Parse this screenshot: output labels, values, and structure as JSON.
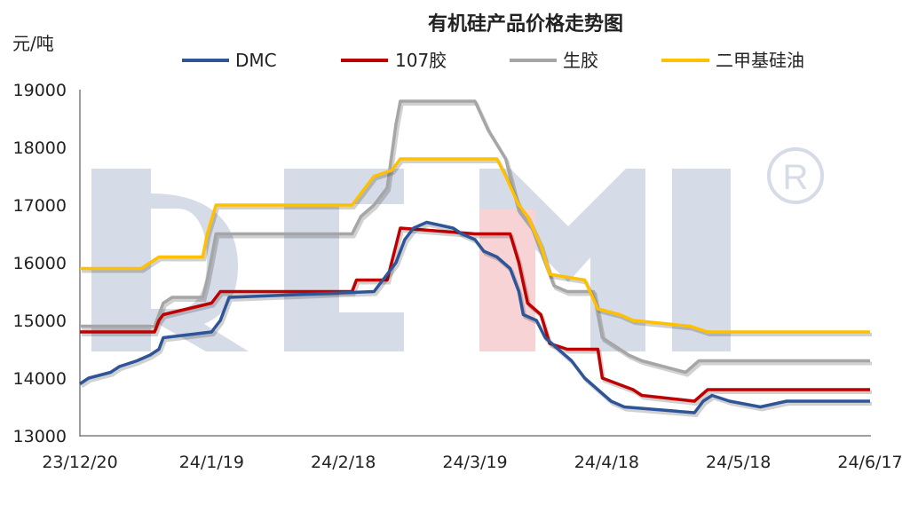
{
  "chart_data": {
    "type": "line",
    "title": "有机硅产品价格走势图",
    "ylabel": "元/吨",
    "ylim": [
      13000,
      19000
    ],
    "yticks": [
      "13000",
      "14000",
      "15000",
      "16000",
      "17000",
      "18000",
      "19000"
    ],
    "xlim": [
      "2023-12-20",
      "2024-06-17"
    ],
    "xticks": [
      {
        "date": "2023-12-20",
        "label": "23/12/20"
      },
      {
        "date": "2024-01-19",
        "label": "24/1/19"
      },
      {
        "date": "2024-02-18",
        "label": "24/2/18"
      },
      {
        "date": "2024-03-19",
        "label": "24/3/19"
      },
      {
        "date": "2024-04-18",
        "label": "24/4/18"
      },
      {
        "date": "2024-05-18",
        "label": "24/5/18"
      },
      {
        "date": "2024-06-17",
        "label": "24/6/17"
      }
    ],
    "legend_position": "top",
    "grid": false,
    "series": [
      {
        "name": "DMC",
        "color": "#2E5597",
        "points": [
          [
            "2023-12-20",
            13900
          ],
          [
            "2023-12-22",
            14000
          ],
          [
            "2023-12-27",
            14100
          ],
          [
            "2023-12-29",
            14200
          ],
          [
            "2024-01-02",
            14300
          ],
          [
            "2024-01-05",
            14400
          ],
          [
            "2024-01-07",
            14500
          ],
          [
            "2024-01-08",
            14700
          ],
          [
            "2024-01-19",
            14800
          ],
          [
            "2024-01-21",
            15000
          ],
          [
            "2024-01-23",
            15400
          ],
          [
            "2024-02-25",
            15500
          ],
          [
            "2024-03-01",
            16000
          ],
          [
            "2024-03-03",
            16400
          ],
          [
            "2024-03-05",
            16600
          ],
          [
            "2024-03-08",
            16700
          ],
          [
            "2024-03-14",
            16600
          ],
          [
            "2024-03-16",
            16500
          ],
          [
            "2024-03-19",
            16400
          ],
          [
            "2024-03-21",
            16200
          ],
          [
            "2024-03-24",
            16100
          ],
          [
            "2024-03-27",
            15900
          ],
          [
            "2024-03-29",
            15500
          ],
          [
            "2024-03-30",
            15100
          ],
          [
            "2024-04-02",
            15000
          ],
          [
            "2024-04-04",
            14700
          ],
          [
            "2024-04-07",
            14500
          ],
          [
            "2024-04-10",
            14300
          ],
          [
            "2024-04-13",
            14000
          ],
          [
            "2024-04-16",
            13800
          ],
          [
            "2024-04-19",
            13600
          ],
          [
            "2024-04-22",
            13500
          ],
          [
            "2024-05-08",
            13400
          ],
          [
            "2024-05-10",
            13600
          ],
          [
            "2024-05-12",
            13700
          ],
          [
            "2024-05-16",
            13600
          ],
          [
            "2024-05-23",
            13500
          ],
          [
            "2024-05-29",
            13600
          ],
          [
            "2024-06-17",
            13600
          ]
        ]
      },
      {
        "name": "107胶",
        "color": "#C00000",
        "points": [
          [
            "2023-12-20",
            14800
          ],
          [
            "2024-01-06",
            14800
          ],
          [
            "2024-01-07",
            15000
          ],
          [
            "2024-01-08",
            15100
          ],
          [
            "2024-01-19",
            15300
          ],
          [
            "2024-01-21",
            15500
          ],
          [
            "2024-02-20",
            15500
          ],
          [
            "2024-02-21",
            15700
          ],
          [
            "2024-02-28",
            15700
          ],
          [
            "2024-03-01",
            16300
          ],
          [
            "2024-03-02",
            16600
          ],
          [
            "2024-03-19",
            16500
          ],
          [
            "2024-03-27",
            16500
          ],
          [
            "2024-03-29",
            16000
          ],
          [
            "2024-03-31",
            15300
          ],
          [
            "2024-04-03",
            15100
          ],
          [
            "2024-04-05",
            14600
          ],
          [
            "2024-04-09",
            14500
          ],
          [
            "2024-04-16",
            14500
          ],
          [
            "2024-04-17",
            14000
          ],
          [
            "2024-04-24",
            13800
          ],
          [
            "2024-04-26",
            13700
          ],
          [
            "2024-05-08",
            13600
          ],
          [
            "2024-05-11",
            13800
          ],
          [
            "2024-06-17",
            13800
          ]
        ]
      },
      {
        "name": "生胶",
        "color": "#A6A6A6",
        "points": [
          [
            "2023-12-20",
            14900
          ],
          [
            "2024-01-06",
            14900
          ],
          [
            "2024-01-08",
            15300
          ],
          [
            "2024-01-10",
            15400
          ],
          [
            "2024-01-17",
            15400
          ],
          [
            "2024-01-18",
            15700
          ],
          [
            "2024-01-20",
            16500
          ],
          [
            "2024-02-20",
            16500
          ],
          [
            "2024-02-22",
            16800
          ],
          [
            "2024-02-25",
            17000
          ],
          [
            "2024-02-28",
            17300
          ],
          [
            "2024-03-01",
            18400
          ],
          [
            "2024-03-02",
            18800
          ],
          [
            "2024-03-19",
            18800
          ],
          [
            "2024-03-22",
            18300
          ],
          [
            "2024-03-26",
            17800
          ],
          [
            "2024-03-29",
            16900
          ],
          [
            "2024-04-01",
            16600
          ],
          [
            "2024-04-04",
            16000
          ],
          [
            "2024-04-06",
            15600
          ],
          [
            "2024-04-09",
            15500
          ],
          [
            "2024-04-15",
            15500
          ],
          [
            "2024-04-17",
            14700
          ],
          [
            "2024-04-23",
            14400
          ],
          [
            "2024-04-26",
            14300
          ],
          [
            "2024-05-06",
            14100
          ],
          [
            "2024-05-09",
            14300
          ],
          [
            "2024-06-17",
            14300
          ]
        ]
      },
      {
        "name": "二甲基硅油",
        "color": "#FFC000",
        "points": [
          [
            "2023-12-20",
            15900
          ],
          [
            "2024-01-03",
            15900
          ],
          [
            "2024-01-05",
            16000
          ],
          [
            "2024-01-07",
            16100
          ],
          [
            "2024-01-17",
            16100
          ],
          [
            "2024-01-18",
            16500
          ],
          [
            "2024-01-20",
            17000
          ],
          [
            "2024-02-20",
            17000
          ],
          [
            "2024-02-23",
            17300
          ],
          [
            "2024-02-25",
            17500
          ],
          [
            "2024-02-29",
            17600
          ],
          [
            "2024-03-02",
            17800
          ],
          [
            "2024-03-24",
            17800
          ],
          [
            "2024-03-26",
            17500
          ],
          [
            "2024-03-29",
            17000
          ],
          [
            "2024-03-31",
            16800
          ],
          [
            "2024-04-03",
            16300
          ],
          [
            "2024-04-05",
            15800
          ],
          [
            "2024-04-13",
            15700
          ],
          [
            "2024-04-16",
            15200
          ],
          [
            "2024-04-21",
            15100
          ],
          [
            "2024-04-24",
            15000
          ],
          [
            "2024-05-07",
            14900
          ],
          [
            "2024-05-11",
            14800
          ],
          [
            "2024-06-17",
            14800
          ]
        ]
      }
    ]
  }
}
